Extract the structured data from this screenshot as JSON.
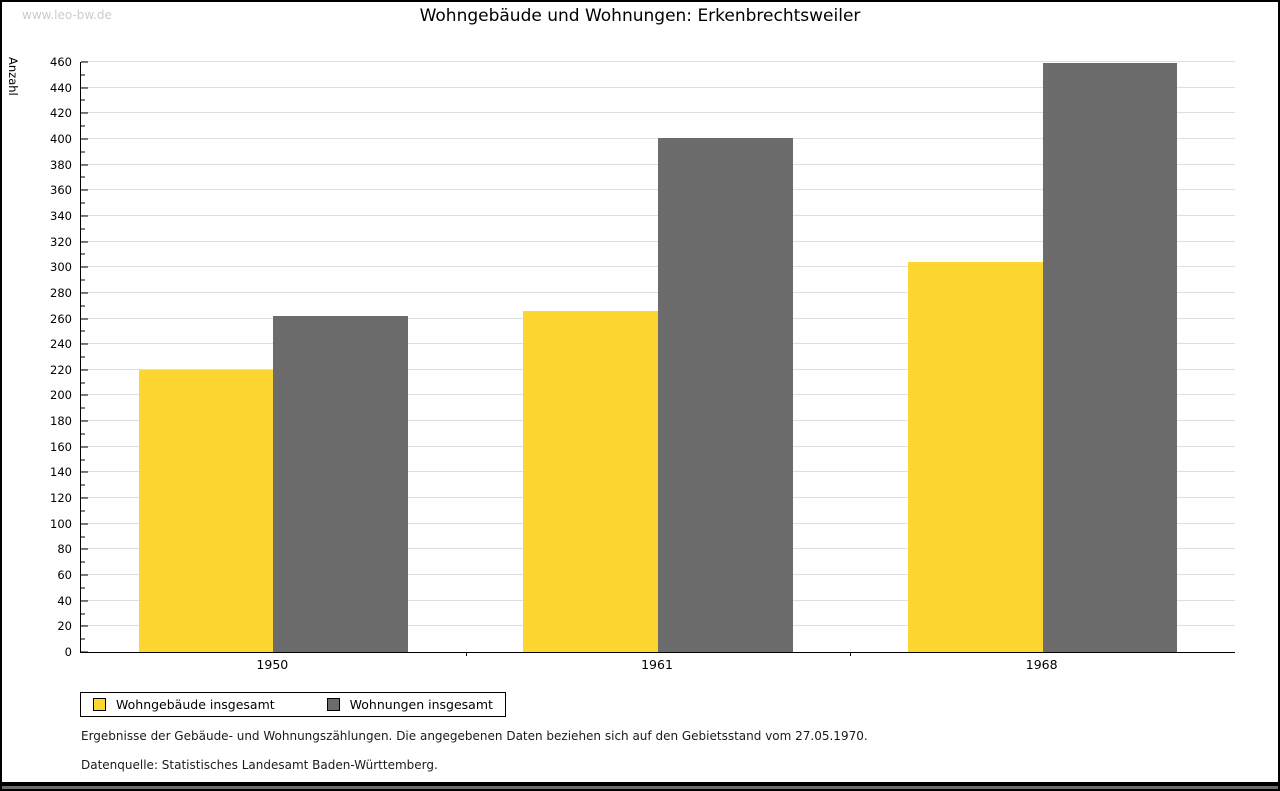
{
  "watermark": "www.leo-bw.de",
  "title": "Wohngebäude und Wohnungen: Erkenbrechtsweiler",
  "y_axis_title": "Anzahl",
  "footnotes": {
    "line1": "Ergebnisse der Gebäude- und Wohnungszählungen. Die angegebenen Daten beziehen sich auf den Gebietsstand vom 27.05.1970.",
    "line2": "Datenquelle: Statistisches Landesamt Baden-Württemberg."
  },
  "colors": {
    "bar_yellow": "#fdd62f",
    "bar_gray": "#6c6c6c",
    "gridline": "#e0e0e0",
    "axis": "#000000",
    "watermark": "#cccccc"
  },
  "chart_data": {
    "type": "bar",
    "title": "Wohngebäude und Wohnungen: Erkenbrechtsweiler",
    "xlabel": "",
    "ylabel": "Anzahl",
    "categories": [
      "1950",
      "1961",
      "1968"
    ],
    "series": [
      {
        "name": "Wohngebäude insgesamt",
        "color": "#fdd62f",
        "values": [
          220,
          266,
          304
        ]
      },
      {
        "name": "Wohnungen insgesamt",
        "color": "#6c6c6c",
        "values": [
          262,
          401,
          459
        ]
      }
    ],
    "ylim": [
      0,
      460
    ],
    "ytick_step": 20,
    "yminor_step": 10,
    "grid": true,
    "legend_position": "bottom-left"
  }
}
